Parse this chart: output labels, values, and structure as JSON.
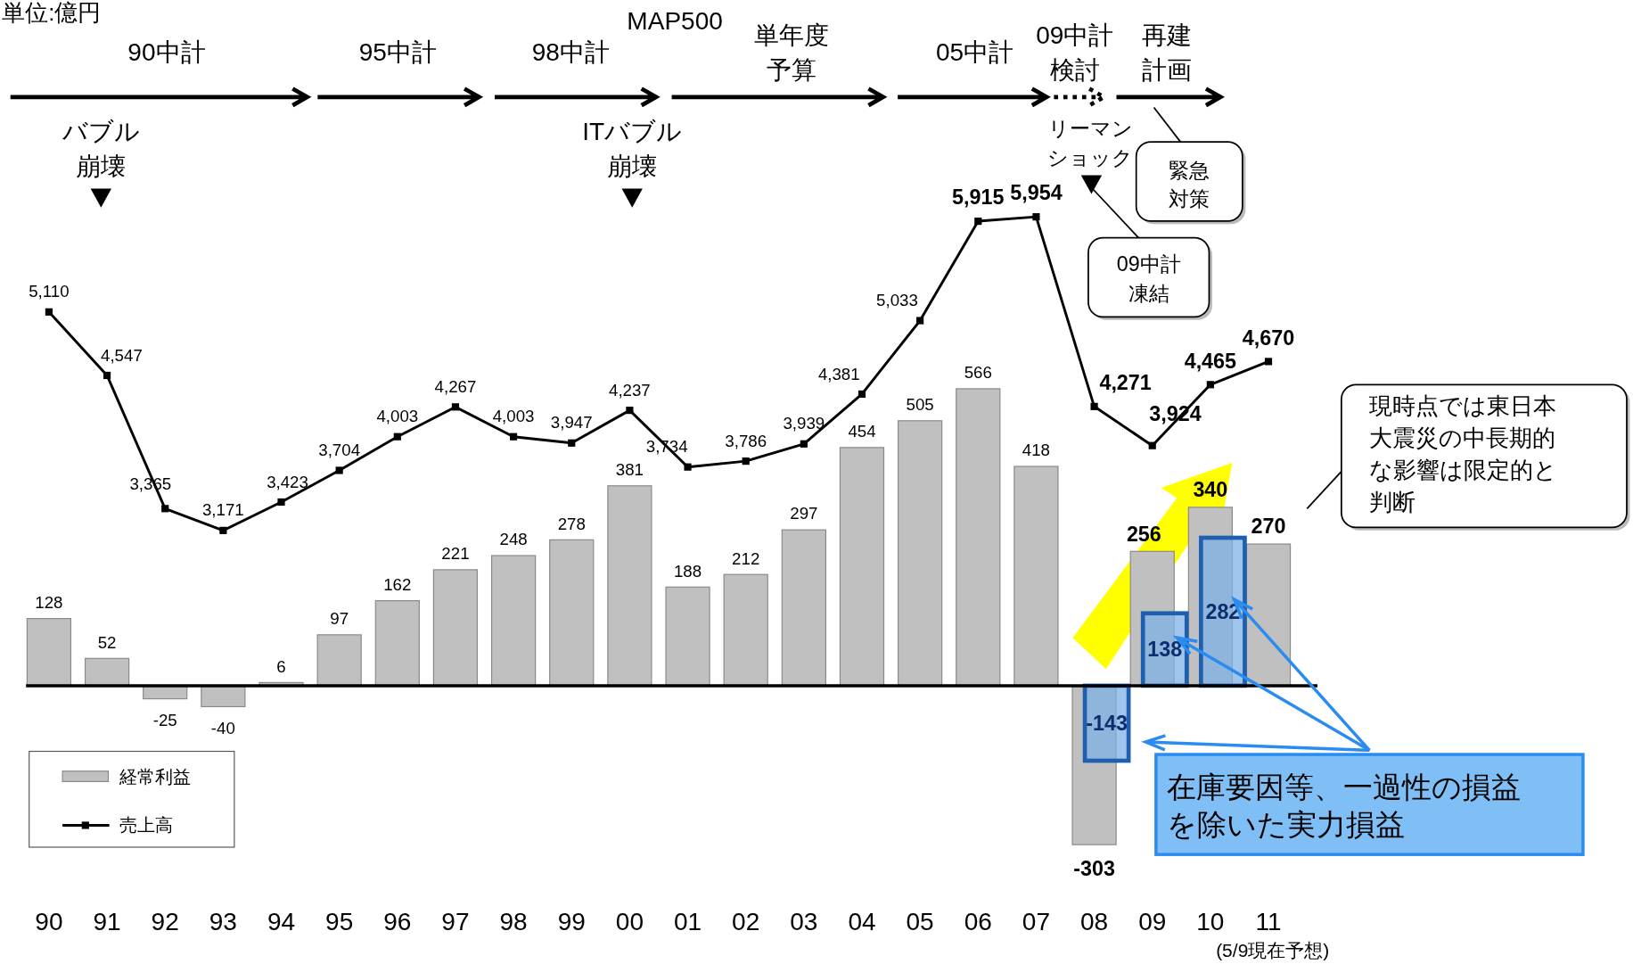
{
  "chart_data": {
    "type": "bar",
    "categories": [
      "90",
      "91",
      "92",
      "93",
      "94",
      "95",
      "96",
      "97",
      "98",
      "99",
      "00",
      "01",
      "02",
      "03",
      "04",
      "05",
      "06",
      "07",
      "08",
      "09",
      "10",
      "11"
    ],
    "series": [
      {
        "name": "経常利益",
        "color": "#c0c0c0",
        "values": [
          128,
          52,
          -25,
          -40,
          6,
          97,
          162,
          221,
          248,
          278,
          381,
          188,
          212,
          297,
          454,
          505,
          566,
          418,
          -303,
          256,
          340,
          270
        ]
      },
      {
        "name": "売上高",
        "type": "line",
        "axis": "y2",
        "color": "#000000",
        "values": [
          5110,
          4547,
          3365,
          3171,
          3423,
          3704,
          4003,
          4267,
          4003,
          3947,
          4237,
          3734,
          3786,
          3939,
          4381,
          5033,
          5915,
          5954,
          4271,
          3924,
          4465,
          4670
        ],
        "value_labels": [
          "5,110",
          "4,547",
          "3,365",
          "3,171",
          "3,423",
          "3,704",
          "4,003",
          "4,267",
          "4,003",
          "3,947",
          "4,237",
          "3,734",
          "3,786",
          "3,939",
          "4,381",
          "5,033",
          "5,915",
          "5,954",
          "4,271",
          "3,924",
          "4,465",
          "4,670"
        ]
      },
      {
        "name": "在庫要因等、一過性の損益を除いた実力損益",
        "color": "#7fb2e5",
        "values": [
          null,
          null,
          null,
          null,
          null,
          null,
          null,
          null,
          null,
          null,
          null,
          null,
          null,
          null,
          null,
          null,
          null,
          null,
          -143,
          138,
          282,
          null
        ]
      }
    ],
    "tick_labels": "x",
    "data_labels": true,
    "legend": "bottom left",
    "marker": "square",
    "line_style": "solid",
    "annotations": [
      "単位:億円",
      "90中計",
      "95中計",
      "98中計",
      "MAP500",
      "単年度予算",
      "05中計",
      "09中計検討",
      "再建計画",
      "バブル崩壊",
      "ITバブル崩壊",
      "リーマンショック",
      "緊急対策",
      "09中計凍結",
      "現時点では東日本大震災の中長期的な影響は限定的と判断",
      "(5/9現在予想)"
    ]
  }
}
